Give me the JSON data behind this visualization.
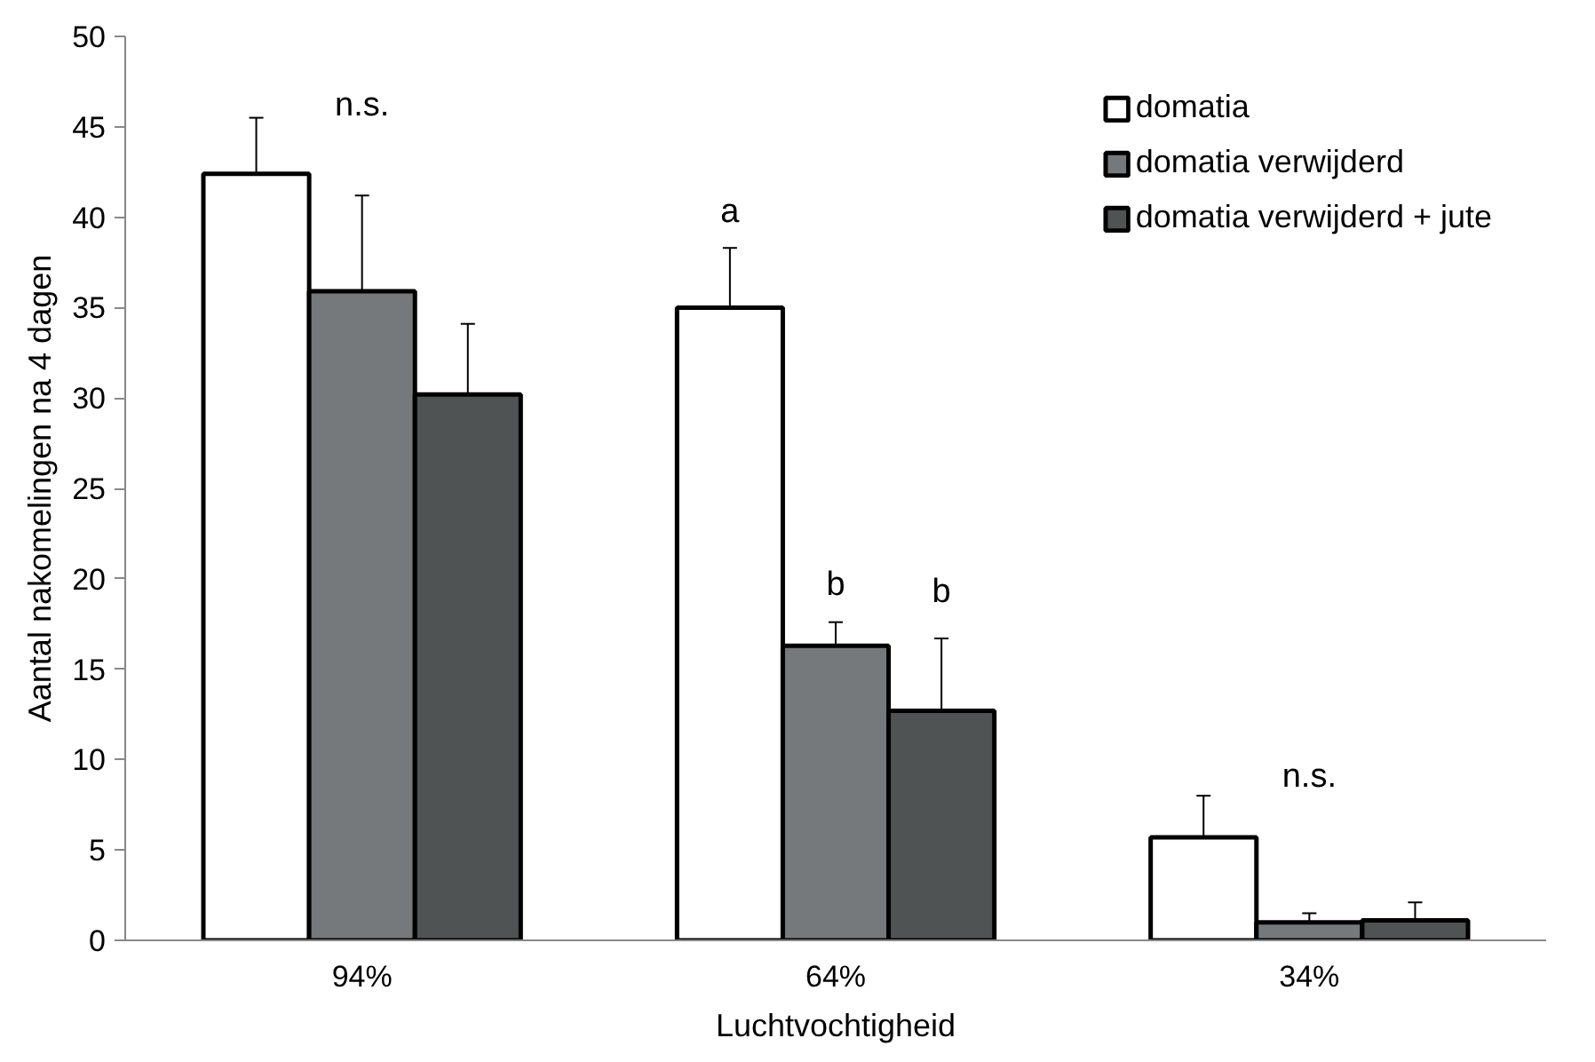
{
  "chart_data": {
    "type": "bar",
    "xlabel": "Luchtvochtigheid",
    "ylabel": "Aantal nakomelingen na 4 dagen",
    "categories": [
      "94%",
      "64%",
      "34%"
    ],
    "series": [
      {
        "name": "domatia",
        "color": "#ffffff",
        "values": [
          42.4,
          35.0,
          5.7
        ],
        "errors": [
          3.1,
          3.3,
          2.3
        ]
      },
      {
        "name": "domatia verwijderd",
        "color": "#76797b",
        "values": [
          35.9,
          16.3,
          1.0
        ],
        "errors": [
          5.3,
          1.3,
          0.5
        ]
      },
      {
        "name": "domatia verwijderd + jute",
        "color": "#4f5353",
        "values": [
          30.2,
          12.7,
          1.1
        ],
        "errors": [
          3.9,
          4.0,
          1.0
        ]
      }
    ],
    "ylim": [
      0,
      50
    ],
    "yticks": [
      0,
      5,
      10,
      15,
      20,
      25,
      30,
      35,
      40,
      45,
      50
    ],
    "grid": false,
    "legend": "top right",
    "annotations": [
      "n.s.",
      "a",
      "b",
      "b",
      "n.s."
    ]
  }
}
